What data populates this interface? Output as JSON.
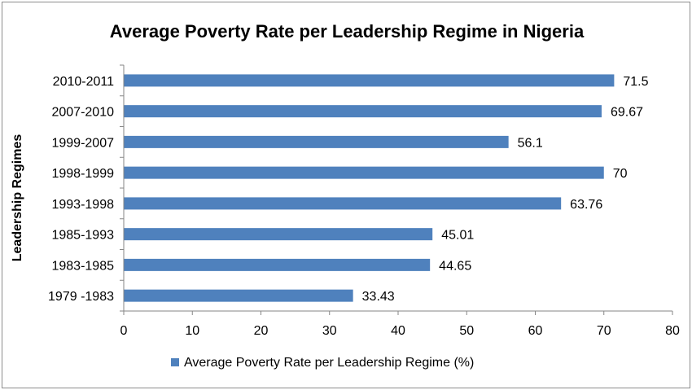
{
  "chart_data": {
    "type": "bar",
    "orientation": "horizontal",
    "title": "Average Poverty Rate per Leadership Regime in Nigeria",
    "ylabel": "Leadership Regimes",
    "xlabel": "",
    "categories": [
      "2010-2011",
      "2007-2010",
      "1999-2007",
      "1998-1999",
      "1993-1998",
      "1985-1993",
      "1983-1985",
      "1979 -1983"
    ],
    "series": [
      {
        "name": "Average Poverty Rate per Leadership Regime (%)",
        "values": [
          71.5,
          69.67,
          56.1,
          70,
          63.76,
          45.01,
          44.65,
          33.43
        ],
        "labels": [
          "71.5",
          "69.67",
          "56.1",
          "70",
          "63.76",
          "45.01",
          "44.65",
          "33.43"
        ],
        "color": "#4f81bd"
      }
    ],
    "xlim": [
      0,
      80
    ],
    "xticks": [
      0,
      10,
      20,
      30,
      40,
      50,
      60,
      70,
      80
    ],
    "grid": false,
    "legend_position": "bottom"
  }
}
